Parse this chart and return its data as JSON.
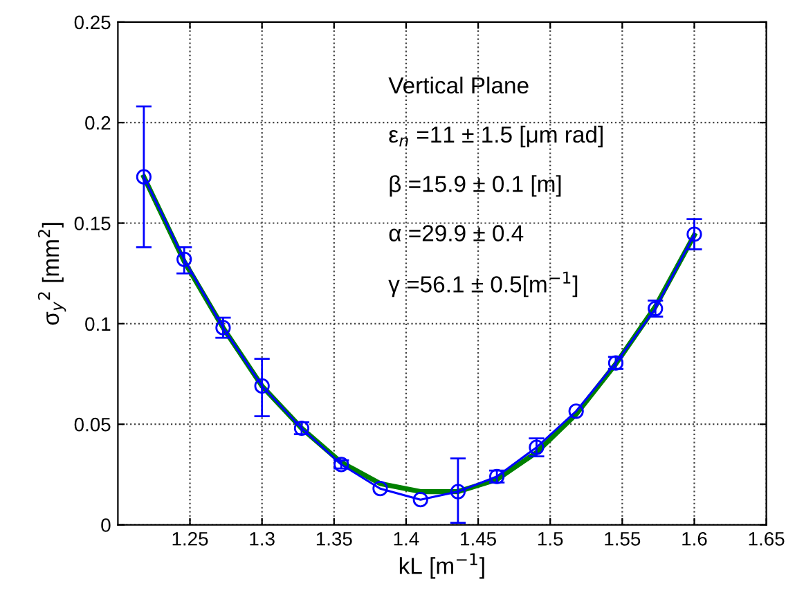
{
  "chart_data": {
    "type": "line",
    "xlabel": "kL [m$^{−1}$]",
    "ylabel": "σ$_{y}$$^{2}$ [mm$^{2}$]",
    "xlim": [
      1.2,
      1.65
    ],
    "ylim": [
      0,
      0.25
    ],
    "xticks": [
      1.25,
      1.3,
      1.35,
      1.4,
      1.45,
      1.5,
      1.55,
      1.6,
      1.65
    ],
    "yticks": [
      0,
      0.05,
      0.1,
      0.15,
      0.2,
      0.25
    ],
    "grid": true,
    "line_style": "solid",
    "annotations": [
      "Vertical Plane",
      "ε$_{n}$ =11 ± 1.5 [μm rad]",
      "β =15.9 ± 0.1 [m]",
      "α =29.9 ± 0.4",
      "γ =56.1 ± 0.5[m$^{−1}$]"
    ],
    "series": [
      {
        "color": "#008000",
        "marker": "none",
        "x": [
          1.218,
          1.246,
          1.273,
          1.3,
          1.3275,
          1.355,
          1.382,
          1.41,
          1.436,
          1.463,
          1.4905,
          1.518,
          1.5455,
          1.573,
          1.6
        ],
        "values": [
          0.173,
          0.131,
          0.098,
          0.069,
          0.048,
          0.031,
          0.0205,
          0.0165,
          0.0165,
          0.0225,
          0.036,
          0.055,
          0.08,
          0.1085,
          0.144
        ]
      },
      {
        "color": "#0000ff",
        "marker": "circle",
        "x": [
          1.218,
          1.246,
          1.273,
          1.3,
          1.3275,
          1.355,
          1.382,
          1.41,
          1.436,
          1.463,
          1.4905,
          1.518,
          1.5455,
          1.573,
          1.6
        ],
        "values": [
          0.173,
          0.132,
          0.098,
          0.069,
          0.048,
          0.03,
          0.018,
          0.0125,
          0.0165,
          0.024,
          0.0385,
          0.0565,
          0.0805,
          0.1075,
          0.1445
        ],
        "errors": [
          [
            0.138,
            0.208
          ],
          [
            0.125,
            0.138
          ],
          [
            0.093,
            0.103
          ],
          [
            0.054,
            0.0825
          ],
          [
            0.045,
            0.051
          ],
          [
            0.028,
            0.032
          ],
          null,
          null,
          [
            0.001,
            0.033
          ],
          [
            0.021,
            0.027
          ],
          [
            0.034,
            0.043
          ],
          null,
          [
            0.0775,
            0.0835
          ],
          [
            0.1035,
            0.1115
          ],
          [
            0.137,
            0.152
          ]
        ]
      }
    ]
  }
}
